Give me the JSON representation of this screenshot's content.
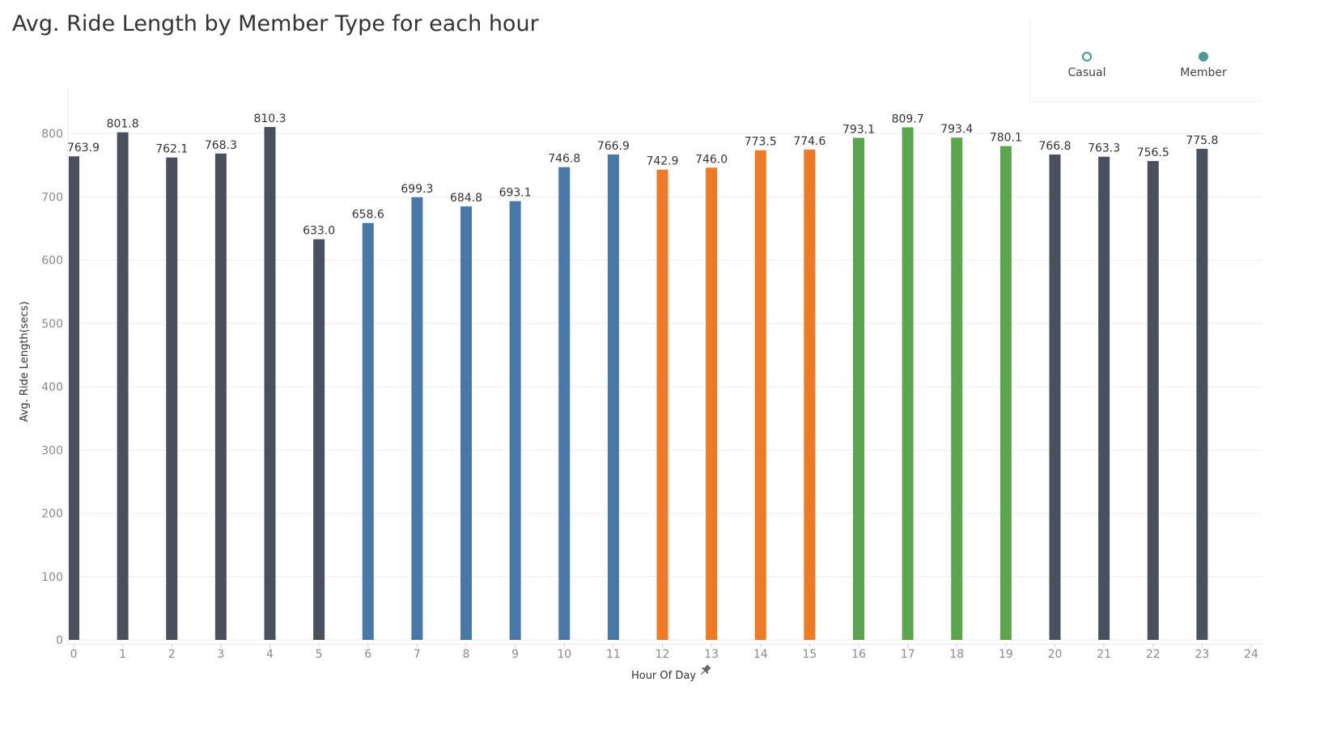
{
  "title": "Avg. Ride Length by Member Type for each hour",
  "legend": {
    "items": [
      {
        "label": "Casual",
        "marker": "open-circle",
        "color": "#3c9a93"
      },
      {
        "label": "Member",
        "marker": "filled-circle",
        "color": "#4a9a93"
      }
    ]
  },
  "chart_data": {
    "type": "bar",
    "title": "Avg. Ride Length by Member Type for each hour",
    "xlabel": "Hour Of Day",
    "ylabel": "Avg. Ride Length(secs)",
    "xlim": [
      0,
      24
    ],
    "ylim": [
      0,
      800
    ],
    "x_ticks": [
      0,
      1,
      2,
      3,
      4,
      5,
      6,
      7,
      8,
      9,
      10,
      11,
      12,
      13,
      14,
      15,
      16,
      17,
      18,
      19,
      20,
      21,
      22,
      23,
      24
    ],
    "y_ticks": [
      0,
      100,
      200,
      300,
      400,
      500,
      600,
      700,
      800
    ],
    "grid": "horizontal",
    "legend_position": "top-right",
    "x_axis_pin_icon": "pin-icon",
    "categories": [
      0,
      1,
      2,
      3,
      4,
      5,
      6,
      7,
      8,
      9,
      10,
      11,
      12,
      13,
      14,
      15,
      16,
      17,
      18,
      19,
      20,
      21,
      22,
      23
    ],
    "values": [
      763.9,
      801.8,
      762.1,
      768.3,
      810.3,
      633.0,
      658.6,
      699.3,
      684.8,
      693.1,
      746.8,
      766.9,
      742.9,
      746.0,
      773.5,
      774.6,
      793.1,
      809.7,
      793.4,
      780.1,
      766.8,
      763.3,
      756.5,
      775.8
    ],
    "value_labels": [
      "763.9",
      "801.8",
      "762.1",
      "768.3",
      "810.3",
      "633.0",
      "658.6",
      "699.3",
      "684.8",
      "693.1",
      "746.8",
      "766.9",
      "742.9",
      "746.0",
      "773.5",
      "774.6",
      "793.1",
      "809.7",
      "793.4",
      "780.1",
      "766.8",
      "763.3",
      "756.5",
      "775.8"
    ],
    "bar_colors": [
      "#4a505c",
      "#4a505c",
      "#4a505c",
      "#4a505c",
      "#4a505c",
      "#4a505c",
      "#4878a8",
      "#4878a8",
      "#4878a8",
      "#4878a8",
      "#4878a8",
      "#4878a8",
      "#ef7a25",
      "#ef7a25",
      "#ef7a25",
      "#ef7a25",
      "#5ba54c",
      "#5ba54c",
      "#5ba54c",
      "#5ba54c",
      "#4a505c",
      "#4a505c",
      "#4a505c",
      "#4a505c"
    ]
  }
}
